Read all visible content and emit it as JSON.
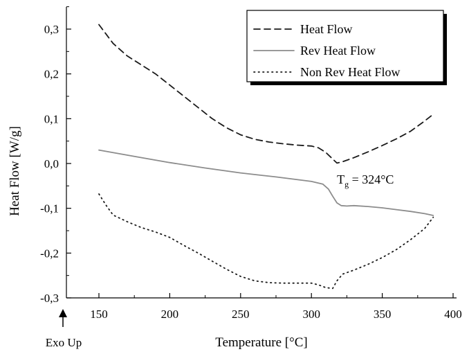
{
  "chart_data": {
    "type": "line",
    "xlabel": "Temperature [°C]",
    "ylabel": "Heat Flow [W/g]",
    "xlim": [
      150,
      400
    ],
    "ylim": [
      -0.3,
      0.35
    ],
    "x_ticks": [
      150,
      200,
      250,
      300,
      350,
      400
    ],
    "x_tick_labels": [
      "150",
      "200",
      "250",
      "300",
      "350",
      "400"
    ],
    "y_ticks": [
      -0.3,
      -0.2,
      -0.1,
      0.0,
      0.1,
      0.2,
      0.3
    ],
    "y_tick_labels": [
      "-0,3",
      "-0,2",
      "-0,1",
      "0,0",
      "0,1",
      "0,2",
      "0,3"
    ],
    "grid": false,
    "legend_position": "top-right",
    "series": [
      {
        "name": "Heat Flow",
        "style": "dashed",
        "color": "#1a1a1a",
        "x": [
          150,
          160,
          170,
          180,
          190,
          200,
          210,
          220,
          230,
          240,
          250,
          260,
          270,
          280,
          290,
          300,
          305,
          310,
          315,
          318,
          322,
          330,
          340,
          350,
          360,
          370,
          380,
          386
        ],
        "y": [
          0.31,
          0.268,
          0.24,
          0.22,
          0.2,
          0.175,
          0.15,
          0.125,
          0.1,
          0.08,
          0.064,
          0.054,
          0.048,
          0.044,
          0.041,
          0.039,
          0.035,
          0.025,
          0.01,
          0.001,
          0.004,
          0.013,
          0.026,
          0.04,
          0.055,
          0.072,
          0.095,
          0.11
        ]
      },
      {
        "name": "Rev Heat Flow",
        "style": "solid",
        "color": "#8c8c8c",
        "x": [
          150,
          175,
          200,
          225,
          250,
          275,
          300,
          308,
          312,
          315,
          318,
          321,
          325,
          330,
          340,
          350,
          360,
          370,
          380,
          386
        ],
        "y": [
          0.03,
          0.016,
          0.002,
          -0.01,
          -0.021,
          -0.03,
          -0.04,
          -0.046,
          -0.057,
          -0.073,
          -0.088,
          -0.094,
          -0.095,
          -0.094,
          -0.096,
          -0.099,
          -0.103,
          -0.107,
          -0.112,
          -0.116
        ]
      },
      {
        "name": "Non Rev Heat Flow",
        "style": "dotted",
        "color": "#1a1a1a",
        "x": [
          150,
          155,
          160,
          170,
          180,
          190,
          200,
          210,
          220,
          230,
          240,
          250,
          260,
          270,
          280,
          290,
          300,
          305,
          310,
          315,
          318,
          322,
          330,
          340,
          350,
          360,
          370,
          380,
          386
        ],
        "y": [
          -0.068,
          -0.093,
          -0.115,
          -0.13,
          -0.143,
          -0.153,
          -0.165,
          -0.183,
          -0.2,
          -0.218,
          -0.236,
          -0.252,
          -0.262,
          -0.266,
          -0.267,
          -0.267,
          -0.267,
          -0.271,
          -0.277,
          -0.279,
          -0.262,
          -0.247,
          -0.238,
          -0.225,
          -0.21,
          -0.192,
          -0.17,
          -0.145,
          -0.12
        ]
      }
    ],
    "annotations": [
      {
        "text": "T",
        "subscript": "g",
        "suffix": " = 324°C",
        "x": 318,
        "y": -0.045
      }
    ],
    "footer_text": "Exo Up"
  }
}
